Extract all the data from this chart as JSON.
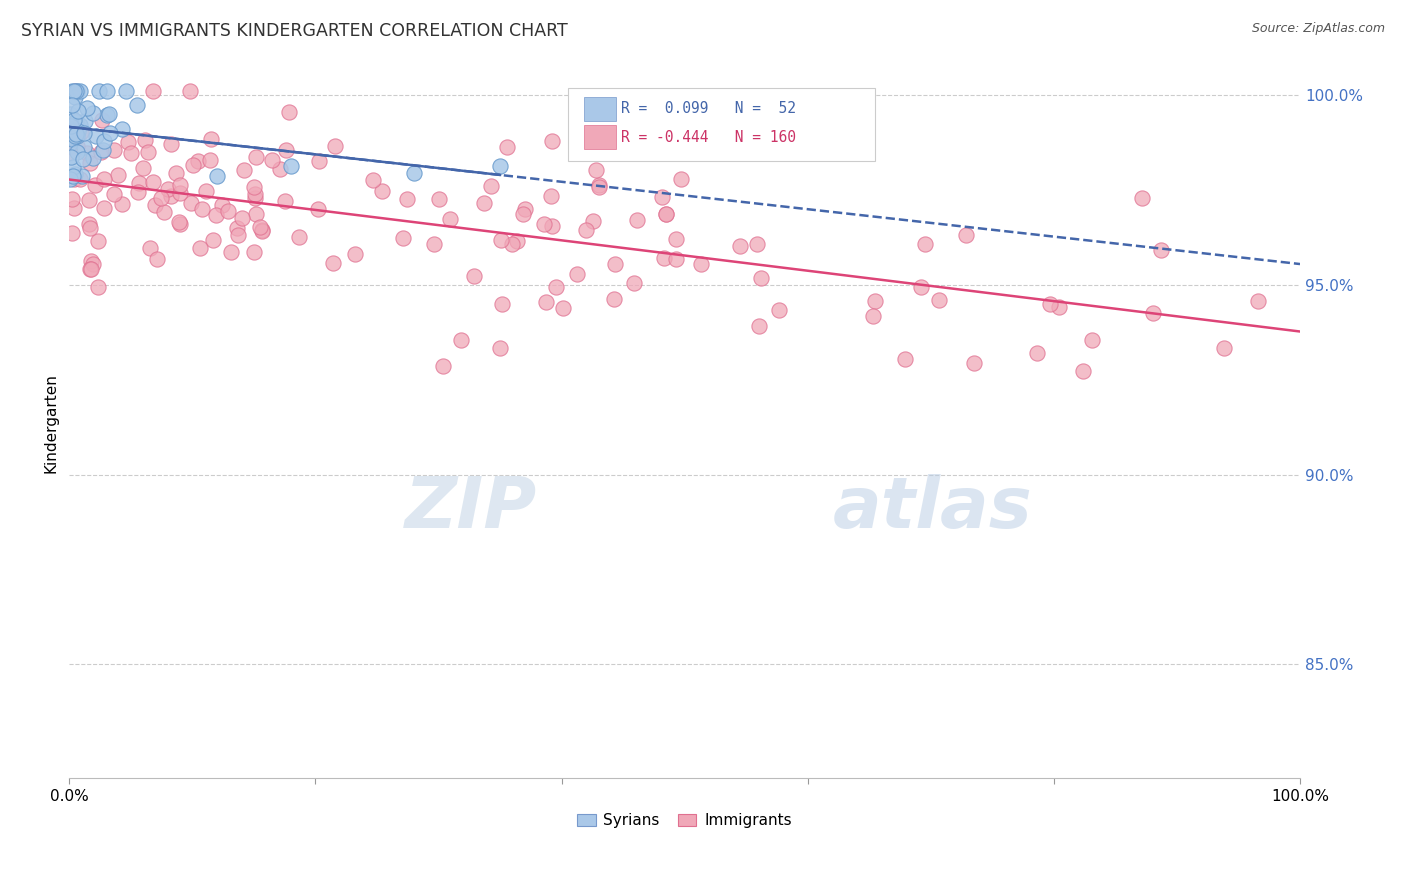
{
  "title": "SYRIAN VS IMMIGRANTS KINDERGARTEN CORRELATION CHART",
  "source": "Source: ZipAtlas.com",
  "ylabel": "Kindergarten",
  "bg_color": "#ffffff",
  "blue_scatter_color": "#a8c8e8",
  "blue_scatter_edge": "#6699cc",
  "pink_scatter_color": "#f0a8b8",
  "pink_scatter_edge": "#e07090",
  "blue_line_color": "#4466aa",
  "pink_line_color": "#dd4477",
  "r_blue": 0.099,
  "n_blue": 52,
  "r_pink": -0.444,
  "n_pink": 160,
  "ytick_color": "#4472c4",
  "watermark_color": "#ddeeff",
  "seed_blue": 7,
  "seed_pink": 13
}
